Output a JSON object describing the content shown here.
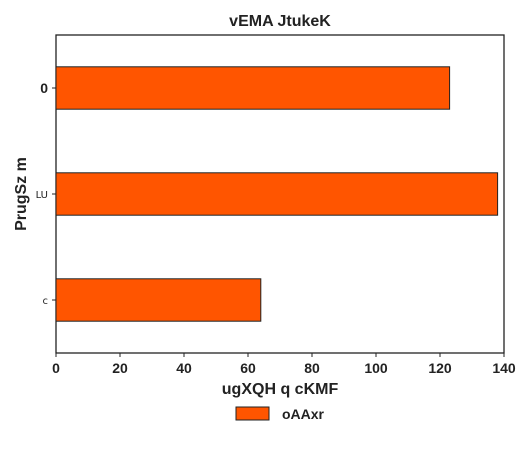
{
  "chart_data": {
    "type": "bar",
    "orientation": "horizontal",
    "title": "vEMA JtukeK",
    "xlabel": "ugXQH q cKMF",
    "ylabel": "PrugSz m",
    "categories": [
      "0",
      "LU",
      "c"
    ],
    "category_label_sizes": [
      "large",
      "small",
      "small"
    ],
    "series": [
      {
        "name": "oAAxr",
        "values": [
          123,
          138,
          64
        ],
        "color": "#ff5500"
      }
    ],
    "xlim": [
      0,
      140
    ],
    "xticks": [
      "0",
      "20",
      "40",
      "60",
      "80",
      "100",
      "120",
      "140"
    ],
    "grid": false,
    "legend_position": "bottom-center"
  }
}
